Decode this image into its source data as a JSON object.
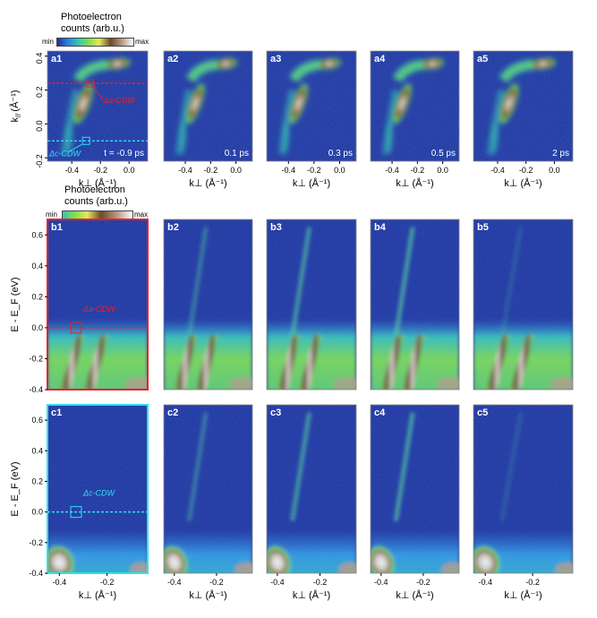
{
  "colorbars": [
    {
      "title_line1": "Photoelectron",
      "title_line2": "counts (arb.u.)",
      "min_label": "min",
      "max_label": "max"
    },
    {
      "title_line1": "Photoelectron",
      "title_line2": "counts (arb.u.)",
      "min_label": "min",
      "max_label": "max"
    }
  ],
  "row_a": {
    "ylabel_k": "k",
    "ylabel_sub": "//",
    "ylabel_unit": "(Å⁻¹)",
    "yticks": [
      "0.4",
      "0.2",
      "0.0",
      "-0.2"
    ],
    "xticks": [
      "-0.4",
      "-0.2",
      "0.0"
    ],
    "xlabel": "k⊥ (Å⁻¹)",
    "panels": [
      {
        "id": "a1",
        "time": "t = -0.9 ps"
      },
      {
        "id": "a2",
        "time": "0.1 ps"
      },
      {
        "id": "a3",
        "time": "0.3 ps"
      },
      {
        "id": "a4",
        "time": "0.5 ps"
      },
      {
        "id": "a5",
        "time": "2 ps"
      }
    ],
    "annotations": {
      "a_cdw": "Δa-CDW",
      "c_cdw": "Δc-CDW"
    }
  },
  "row_b": {
    "ylabel": "E - E_F (eV)",
    "yticks": [
      "0.6",
      "0.4",
      "0.2",
      "0.0",
      "-0.2",
      "-0.4"
    ],
    "panels": [
      {
        "id": "b1"
      },
      {
        "id": "b2"
      },
      {
        "id": "b3"
      },
      {
        "id": "b4"
      },
      {
        "id": "b5"
      }
    ],
    "annotation": "Δa-CDW"
  },
  "row_c": {
    "ylabel": "E - E_F (eV)",
    "yticks": [
      "0.6",
      "0.4",
      "0.2",
      "0.0",
      "-0.2",
      "-0.4"
    ],
    "xticks": [
      "-0.4",
      "-0.2"
    ],
    "xlabel": "k⊥ (Å⁻¹)",
    "panels": [
      {
        "id": "c1"
      },
      {
        "id": "c2"
      },
      {
        "id": "c3"
      },
      {
        "id": "c4"
      },
      {
        "id": "c5"
      }
    ],
    "annotation": "Δc-CDW"
  },
  "colors": {
    "background": "#1c2f9c",
    "a_cdw_line": "#e8202a",
    "c_cdw_line": "#2ee0f0",
    "colormap": [
      "#1c2f9c",
      "#2f7fe0",
      "#35c6b8",
      "#7fe04a",
      "#e6e85a",
      "#6b4a2a",
      "#b89a80",
      "#ffffff"
    ]
  }
}
